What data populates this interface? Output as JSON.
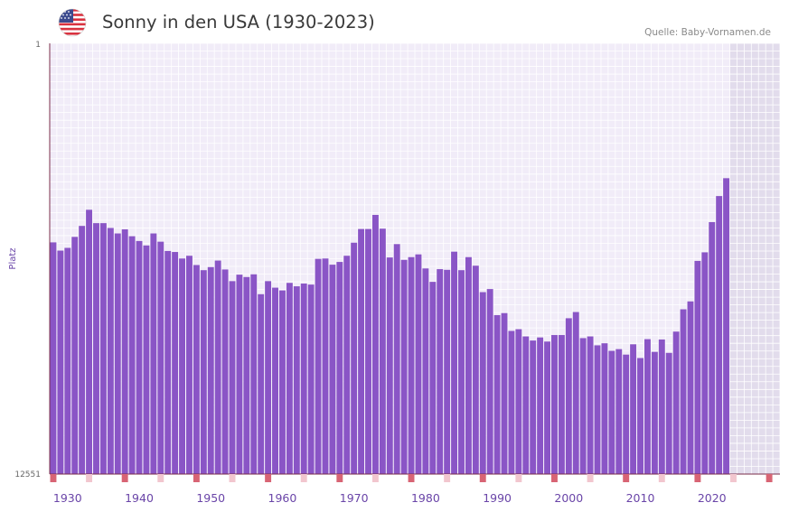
{
  "header": {
    "title": "Sonny in den USA (1930-2023)",
    "source": "Quelle: Baby-Vornamen.de",
    "flag_icon": "us-flag-icon"
  },
  "colors": {
    "bar": "#8a55c6",
    "plot_bg": "#f1ecf8",
    "grid": "#ffffff",
    "future_bg": "#e2dcec",
    "axis": "#7b2d4a",
    "marker_strong": "#d86474",
    "marker_light": "#f2c6ce"
  },
  "chart_data": {
    "type": "bar",
    "title": "Sonny in den USA (1930-2023)",
    "ylabel": "Platz",
    "xlabel": "",
    "y_axis": {
      "top_label": "1",
      "bottom_label": "12551",
      "min": 1,
      "max": 12551,
      "inverted": true
    },
    "x_range": [
      1928,
      2029
    ],
    "future_from": 2023,
    "x_tick_labels": [
      "1930",
      "1940",
      "1950",
      "1960",
      "1970",
      "1980",
      "1990",
      "2000",
      "2010",
      "2020"
    ],
    "x_tick_values": [
      1930,
      1940,
      1950,
      1960,
      1970,
      1980,
      1990,
      2000,
      2010,
      2020
    ],
    "x": [
      1928,
      1929,
      1930,
      1931,
      1932,
      1933,
      1934,
      1935,
      1936,
      1937,
      1938,
      1939,
      1940,
      1941,
      1942,
      1943,
      1944,
      1945,
      1946,
      1947,
      1948,
      1949,
      1950,
      1951,
      1952,
      1953,
      1954,
      1955,
      1956,
      1957,
      1958,
      1959,
      1960,
      1961,
      1962,
      1963,
      1964,
      1965,
      1966,
      1967,
      1968,
      1969,
      1970,
      1971,
      1972,
      1973,
      1974,
      1975,
      1976,
      1977,
      1978,
      1979,
      1980,
      1981,
      1982,
      1983,
      1984,
      1985,
      1986,
      1987,
      1988,
      1989,
      1990,
      1991,
      1992,
      1993,
      1994,
      1995,
      1996,
      1997,
      1998,
      1999,
      2000,
      2001,
      2002,
      2003,
      2004,
      2005,
      2006,
      2007,
      2008,
      2009,
      2010,
      2011,
      2012,
      2013,
      2014,
      2015,
      2016,
      2017,
      2018,
      2019,
      2020,
      2021,
      2022
    ],
    "values": [
      5800,
      6040,
      5960,
      5640,
      5320,
      4850,
      5240,
      5240,
      5380,
      5540,
      5420,
      5620,
      5760,
      5890,
      5540,
      5780,
      6050,
      6080,
      6270,
      6190,
      6460,
      6610,
      6520,
      6330,
      6590,
      6930,
      6740,
      6810,
      6730,
      7310,
      6930,
      7120,
      7200,
      6980,
      7080,
      7000,
      7030,
      6280,
      6270,
      6450,
      6370,
      6190,
      5810,
      5410,
      5410,
      5000,
      5400,
      6240,
      5850,
      6310,
      6230,
      6150,
      6560,
      6950,
      6580,
      6600,
      6070,
      6610,
      6230,
      6480,
      7250,
      7160,
      7920,
      7860,
      8380,
      8330,
      8540,
      8660,
      8570,
      8690,
      8500,
      8500,
      8010,
      7830,
      8590,
      8540,
      8800,
      8740,
      8960,
      8910,
      9070,
      8770,
      9170,
      8620,
      8990,
      8630,
      9020,
      8400,
      7750,
      7520,
      6340,
      6090,
      5210,
      4450,
      3930
    ]
  }
}
